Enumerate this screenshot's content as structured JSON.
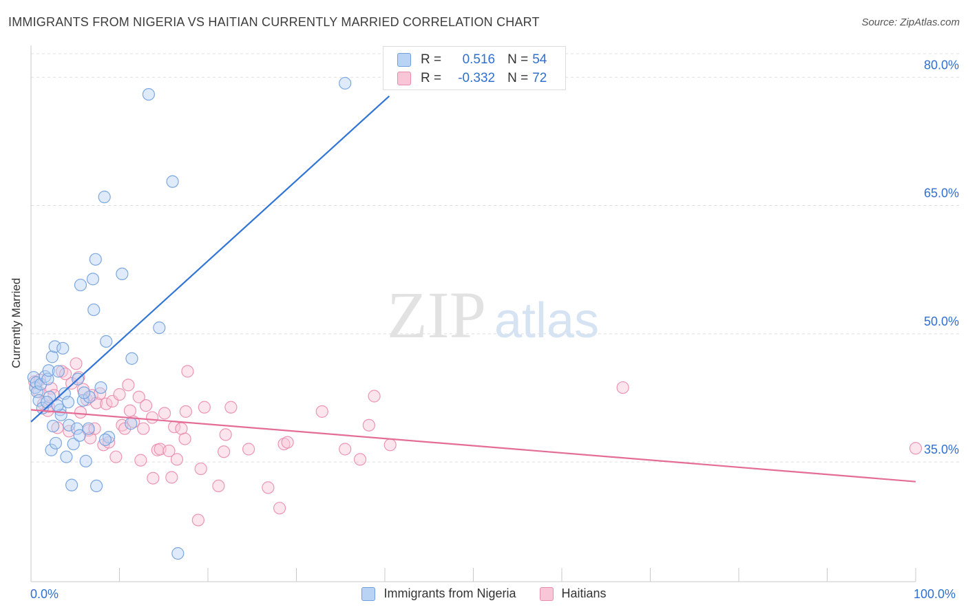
{
  "title": "IMMIGRANTS FROM NIGERIA VS HAITIAN CURRENTLY MARRIED CORRELATION CHART",
  "source": "Source: ZipAtlas.com",
  "watermark": {
    "zip": "ZIP",
    "atlas": "atlas"
  },
  "legend": {
    "r_label": "R =",
    "n_label": "N =",
    "series1": {
      "r": "0.516",
      "n": "54"
    },
    "series2": {
      "r": "-0.332",
      "n": "72"
    }
  },
  "colors": {
    "blue_fill": "#b9d3f5",
    "blue_stroke": "#6f9fdc",
    "blue_line": "#2f74d6",
    "pink_fill": "#f8c6d6",
    "pink_stroke": "#e98bab",
    "pink_line": "#e46c95",
    "tick_text": "#2f6fd0"
  },
  "chart_data": {
    "type": "scatter",
    "title": "IMMIGRANTS FROM NIGERIA VS HAITIAN CURRENTLY MARRIED CORRELATION CHART",
    "xlabel": "",
    "ylabel": "Currently Married",
    "xlim": [
      0,
      100
    ],
    "ylim": [
      21,
      83
    ],
    "x_tick_labels": [
      "0.0%",
      "100.0%"
    ],
    "y_ticks": [
      35,
      50,
      65,
      80
    ],
    "y_tick_labels": [
      "35.0%",
      "50.0%",
      "65.0%",
      "80.0%"
    ],
    "legend_position": "top-center",
    "series": [
      {
        "name": "Immigrants from Nigeria",
        "r": 0.516,
        "n": 54,
        "trend": {
          "x": [
            0,
            40.5
          ],
          "y": [
            39.7,
            77.8
          ]
        },
        "points": [
          [
            0.3,
            44.9
          ],
          [
            0.5,
            43.7
          ],
          [
            0.6,
            44.3
          ],
          [
            0.7,
            43.2
          ],
          [
            0.9,
            42.2
          ],
          [
            1.1,
            44.1
          ],
          [
            1.3,
            41.3
          ],
          [
            1.6,
            45.0
          ],
          [
            1.9,
            44.7
          ],
          [
            2.0,
            45.7
          ],
          [
            2.1,
            42.6
          ],
          [
            2.3,
            36.4
          ],
          [
            2.4,
            47.3
          ],
          [
            2.5,
            39.2
          ],
          [
            2.7,
            48.5
          ],
          [
            2.8,
            37.2
          ],
          [
            3.1,
            45.6
          ],
          [
            3.3,
            41.1
          ],
          [
            3.4,
            40.5
          ],
          [
            3.6,
            48.3
          ],
          [
            3.8,
            43.0
          ],
          [
            4.0,
            35.6
          ],
          [
            4.2,
            42.0
          ],
          [
            4.3,
            39.3
          ],
          [
            4.6,
            32.3
          ],
          [
            4.8,
            37.1
          ],
          [
            5.2,
            38.9
          ],
          [
            5.3,
            44.7
          ],
          [
            5.5,
            38.1
          ],
          [
            5.6,
            55.7
          ],
          [
            5.9,
            42.2
          ],
          [
            6.2,
            35.1
          ],
          [
            6.5,
            38.9
          ],
          [
            6.6,
            42.6
          ],
          [
            7.0,
            56.4
          ],
          [
            7.1,
            52.8
          ],
          [
            7.3,
            58.7
          ],
          [
            7.4,
            32.2
          ],
          [
            7.9,
            43.7
          ],
          [
            8.3,
            66.0
          ],
          [
            8.5,
            49.1
          ],
          [
            8.8,
            37.9
          ],
          [
            8.4,
            37.6
          ],
          [
            10.3,
            57.0
          ],
          [
            11.4,
            47.1
          ],
          [
            11.3,
            39.5
          ],
          [
            13.3,
            78.0
          ],
          [
            14.5,
            50.7
          ],
          [
            16.0,
            67.8
          ],
          [
            16.6,
            24.3
          ],
          [
            35.5,
            79.3
          ],
          [
            1.8,
            42.0
          ],
          [
            3.0,
            41.6
          ],
          [
            6.0,
            43.1
          ]
        ]
      },
      {
        "name": "Haitians",
        "r": -0.332,
        "n": 72,
        "trend": {
          "x": [
            0,
            100
          ],
          "y": [
            41.1,
            32.7
          ]
        },
        "points": [
          [
            0.4,
            44.4
          ],
          [
            0.9,
            43.2
          ],
          [
            1.4,
            41.8
          ],
          [
            1.9,
            41.0
          ],
          [
            2.3,
            43.6
          ],
          [
            2.6,
            42.8
          ],
          [
            3.0,
            39.0
          ],
          [
            3.5,
            45.6
          ],
          [
            3.9,
            45.3
          ],
          [
            4.3,
            38.6
          ],
          [
            4.6,
            44.2
          ],
          [
            5.1,
            46.5
          ],
          [
            5.4,
            44.9
          ],
          [
            5.6,
            40.8
          ],
          [
            5.9,
            43.5
          ],
          [
            6.3,
            42.3
          ],
          [
            6.5,
            38.7
          ],
          [
            6.7,
            37.8
          ],
          [
            6.9,
            42.8
          ],
          [
            7.2,
            38.9
          ],
          [
            7.4,
            41.9
          ],
          [
            7.8,
            43.0
          ],
          [
            8.2,
            37.0
          ],
          [
            8.5,
            41.8
          ],
          [
            8.8,
            37.3
          ],
          [
            9.2,
            42.1
          ],
          [
            9.6,
            35.6
          ],
          [
            10.0,
            42.9
          ],
          [
            10.3,
            39.3
          ],
          [
            10.6,
            38.9
          ],
          [
            11.0,
            44.0
          ],
          [
            11.2,
            41.0
          ],
          [
            11.6,
            39.7
          ],
          [
            12.2,
            42.6
          ],
          [
            12.4,
            35.2
          ],
          [
            12.7,
            38.9
          ],
          [
            13.0,
            41.6
          ],
          [
            13.7,
            40.2
          ],
          [
            13.8,
            33.1
          ],
          [
            14.3,
            36.4
          ],
          [
            14.6,
            36.5
          ],
          [
            15.1,
            40.7
          ],
          [
            15.6,
            36.3
          ],
          [
            15.9,
            33.2
          ],
          [
            16.2,
            39.1
          ],
          [
            16.5,
            35.3
          ],
          [
            17.0,
            38.9
          ],
          [
            17.4,
            37.7
          ],
          [
            17.5,
            40.9
          ],
          [
            17.7,
            45.6
          ],
          [
            18.9,
            28.2
          ],
          [
            19.2,
            34.2
          ],
          [
            19.6,
            41.4
          ],
          [
            21.2,
            32.2
          ],
          [
            21.8,
            36.2
          ],
          [
            22.0,
            38.2
          ],
          [
            22.6,
            41.4
          ],
          [
            24.6,
            36.5
          ],
          [
            26.8,
            32.0
          ],
          [
            28.1,
            29.6
          ],
          [
            28.6,
            37.1
          ],
          [
            29.0,
            37.3
          ],
          [
            32.9,
            40.9
          ],
          [
            35.5,
            36.5
          ],
          [
            37.2,
            35.3
          ],
          [
            38.2,
            39.3
          ],
          [
            38.8,
            42.7
          ],
          [
            40.6,
            37.0
          ],
          [
            66.9,
            43.7
          ],
          [
            100.0,
            36.6
          ],
          [
            1.0,
            44.6
          ],
          [
            2.0,
            41.5
          ]
        ]
      }
    ]
  },
  "bottom_legend": [
    "Immigrants from Nigeria",
    "Haitians"
  ]
}
